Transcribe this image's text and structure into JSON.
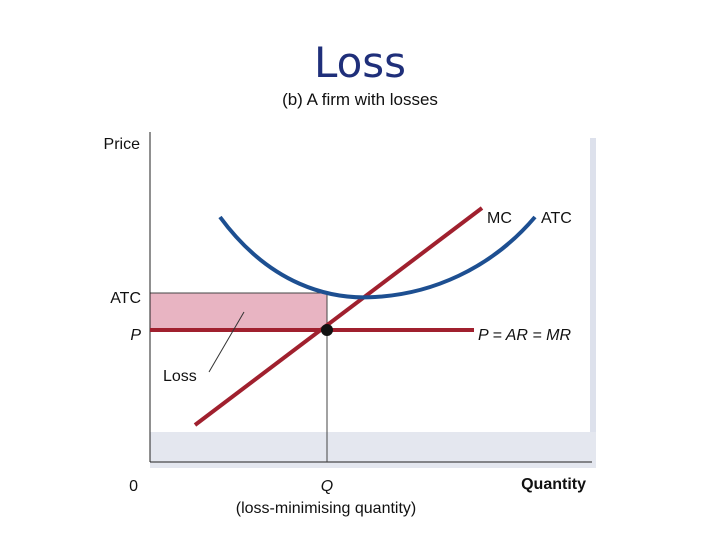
{
  "title": "Loss",
  "subtitle": "(b) A firm with losses",
  "colors": {
    "title": "#1f2f7a",
    "atc_curve": "#1d4f91",
    "mc_line": "#a0202e",
    "price_line": "#a0202e",
    "loss_area": "#e8b4c2",
    "panel_shadow": "#dde1ec"
  },
  "axes": {
    "y_label": "Price",
    "x_label": "Quantity",
    "origin_label": "0"
  },
  "labels": {
    "mc": "MC",
    "atc_curve": "ATC",
    "atc_level": "ATC",
    "price_level": "P",
    "price_line": "P = AR = MR",
    "loss": "Loss",
    "q": "Q",
    "q_note": "(loss-minimising quantity)"
  }
}
